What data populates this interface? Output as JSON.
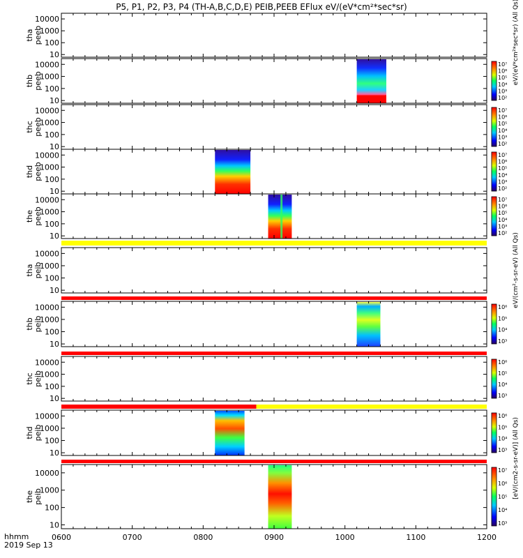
{
  "title": "P5, P1, P2, P3, P4 (TH-A,B,C,D,E) PEIB,PEEB EFlux eV/(eV*cm²*sec*sr)",
  "footer": {
    "label_hhmm": "hhmm",
    "label_date": "2019 Sep 13"
  },
  "colors": {
    "red": "#ff0000",
    "yellow": "#ffff00",
    "frame": "#000000"
  },
  "colorbar_labels": {
    "peeb": "eV/(eV*cm²*sec*sr) (All Qs)",
    "peib_top": "eV/(cm²-s-sr-eV) (All Qs)",
    "peib": "[eV/(cm2-s-sr-eV)] (All Qs)"
  },
  "chart_data": {
    "type": "heatmap",
    "x_unit": "hhmm",
    "xlim": [
      "0600",
      "1200"
    ],
    "x_tick_labels": [
      "0600",
      "0700",
      "0800",
      "0900",
      "1000",
      "1100",
      "1200"
    ],
    "y_scale": "log",
    "ylim": [
      6,
      30000
    ],
    "y_tick_labels": [
      "10",
      "100",
      "1000",
      "10000"
    ],
    "panels": [
      {
        "label": [
          "tha",
          "peeb"
        ],
        "kind": "spec",
        "cbar": "peeb",
        "cbar_ticks": [],
        "blocks": []
      },
      {
        "label": [
          "thb",
          "peeb"
        ],
        "kind": "spec",
        "cbar": "peeb",
        "cbar_ticks": [
          "10⁷",
          "10⁶",
          "10⁵",
          "10⁴",
          "10³",
          "10²"
        ],
        "blocks": [
          {
            "start": "1010",
            "end": "1035",
            "profile": "electron-hot"
          }
        ]
      },
      {
        "label": [
          "thc",
          "peeb"
        ],
        "kind": "spec",
        "cbar": "peeb",
        "cbar_ticks": [
          "10⁷",
          "10⁶",
          "10⁵",
          "10⁴",
          "10³",
          "10²"
        ],
        "blocks": []
      },
      {
        "label": [
          "thd",
          "peeb"
        ],
        "kind": "spec",
        "cbar": "peeb",
        "cbar_ticks": [
          "10⁷",
          "10⁶",
          "10⁵",
          "10⁴",
          "10³",
          "10²"
        ],
        "blocks": [
          {
            "start": "0810",
            "end": "0840",
            "profile": "electron"
          }
        ]
      },
      {
        "label": [
          "the",
          "peeb"
        ],
        "kind": "spec",
        "cbar": "peeb",
        "cbar_ticks": [
          "10⁷",
          "10⁶",
          "10⁵",
          "10⁴",
          "10³",
          "10²"
        ],
        "blocks": [
          {
            "start": "0855",
            "end": "0915",
            "profile": "electron-split"
          }
        ]
      },
      {
        "kind": "bar",
        "segments": [
          {
            "start": "0600",
            "end": "1200",
            "color": "yellow"
          }
        ]
      },
      {
        "label": [
          "tha",
          "peib"
        ],
        "kind": "spec",
        "cbar": "peib_top",
        "cbar_ticks": [],
        "blocks": []
      },
      {
        "kind": "bar",
        "segments": [
          {
            "start": "0600",
            "end": "1200",
            "color": "red"
          }
        ]
      },
      {
        "label": [
          "thb",
          "peib"
        ],
        "kind": "spec",
        "cbar": "peib",
        "cbar_ticks": [
          "10⁶",
          "10⁵",
          "10⁴",
          "10³"
        ],
        "blocks": [
          {
            "start": "1010",
            "end": "1030",
            "profile": "ion-narrow"
          }
        ]
      },
      {
        "kind": "bar",
        "segments": [
          {
            "start": "0600",
            "end": "1200",
            "color": "red"
          }
        ]
      },
      {
        "label": [
          "thc",
          "peib"
        ],
        "kind": "spec",
        "cbar": "peib",
        "cbar_ticks": [
          "10⁶",
          "10⁵",
          "10⁴",
          "10³"
        ],
        "blocks": []
      },
      {
        "kind": "bar",
        "segments": [
          {
            "start": "0600",
            "end": "0845",
            "color": "red"
          },
          {
            "start": "0845",
            "end": "1200",
            "color": "yellow"
          }
        ]
      },
      {
        "label": [
          "thd",
          "peib"
        ],
        "kind": "spec",
        "cbar": "peib",
        "cbar_ticks": [
          "10⁶",
          "10⁵",
          "10⁴",
          "10³"
        ],
        "blocks": [
          {
            "start": "0810",
            "end": "0835",
            "profile": "ion"
          }
        ]
      },
      {
        "kind": "bar",
        "segments": [
          {
            "start": "0600",
            "end": "1200",
            "color": "red"
          }
        ]
      },
      {
        "label": [
          "the",
          "peib"
        ],
        "kind": "spec",
        "cbar": "peib",
        "cbar_ticks": [
          "10⁷",
          "10⁶",
          "10⁵",
          "10⁴",
          "10³"
        ],
        "blocks": [
          {
            "start": "0855",
            "end": "0915",
            "profile": "ion-wide"
          }
        ]
      }
    ]
  }
}
